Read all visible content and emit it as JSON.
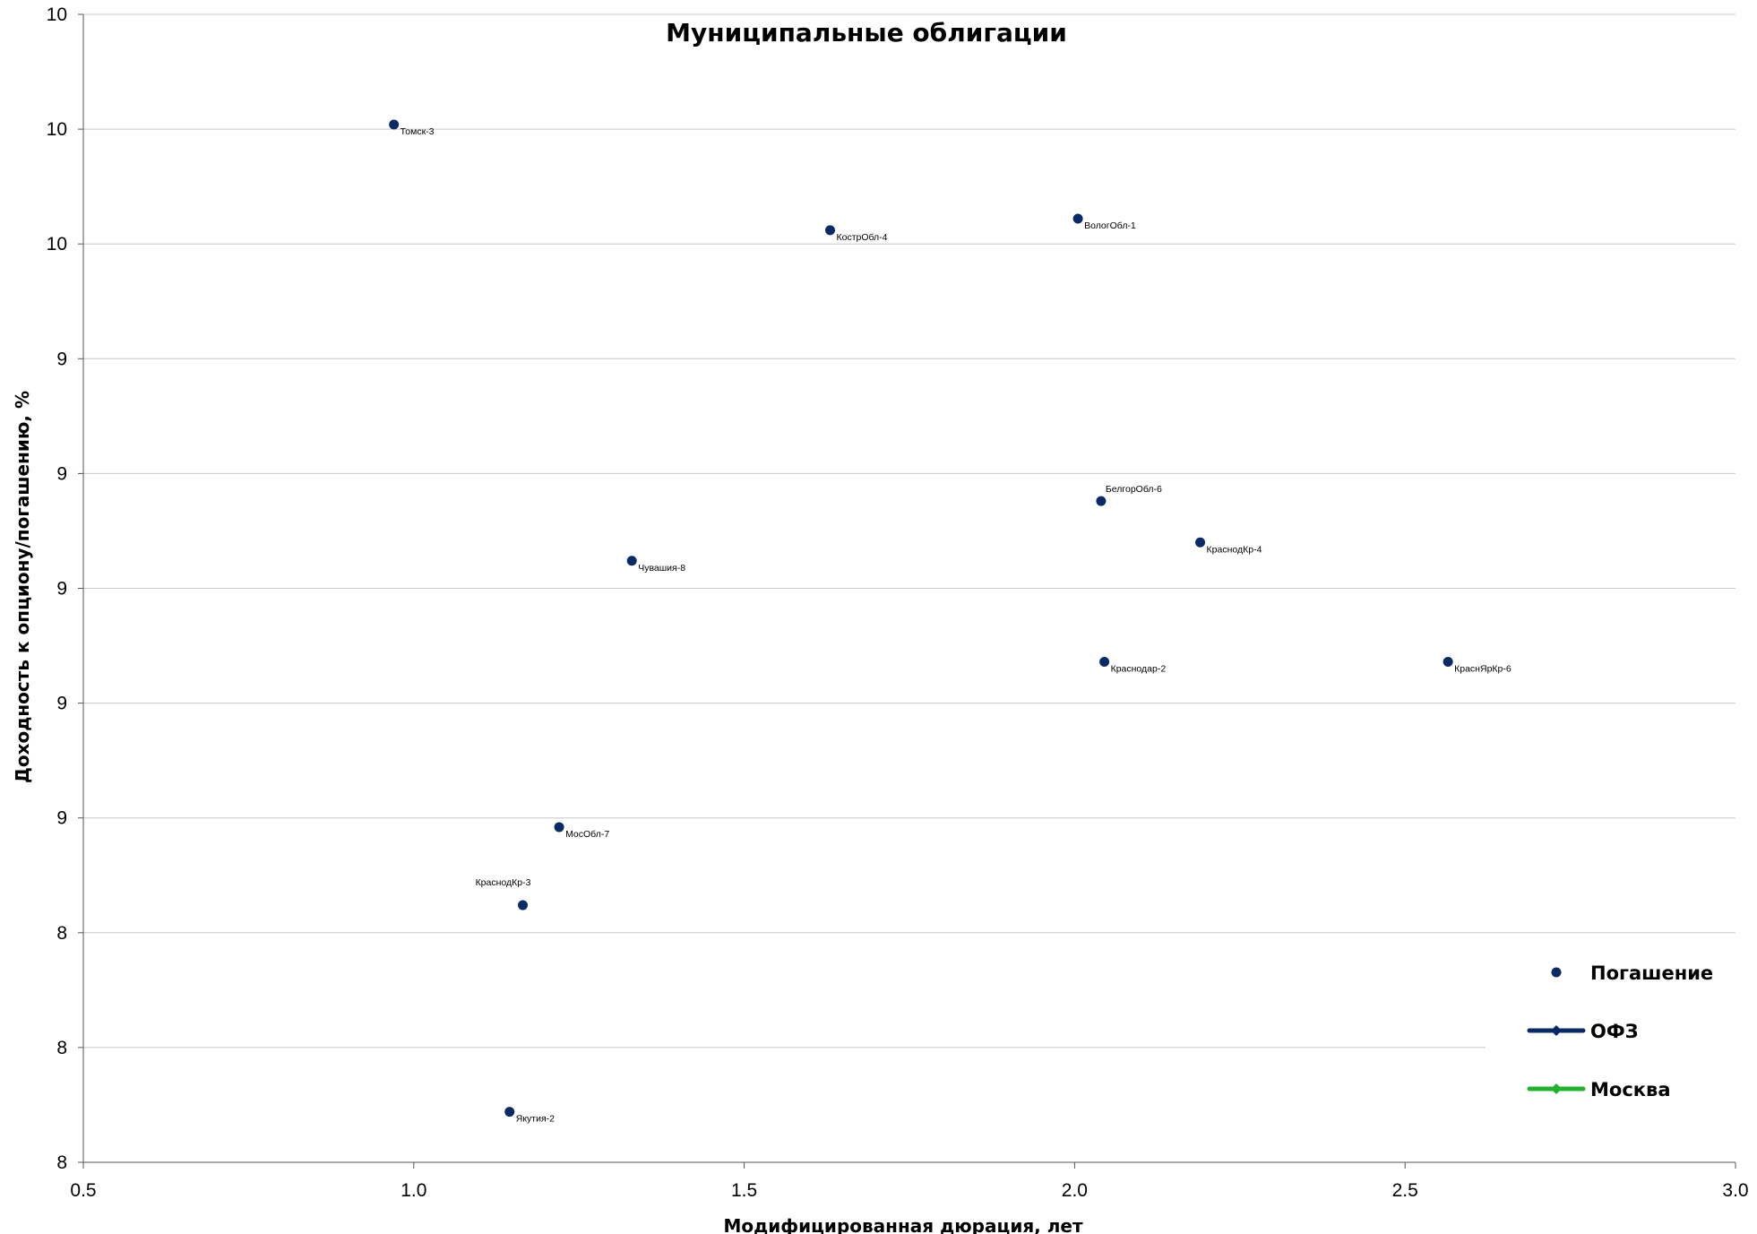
{
  "chart_data": {
    "type": "scatter",
    "title": "Муниципальные облигации",
    "xlabel": "Модифицированная дюрация, лет",
    "ylabel": "Доходность к опциону/погашению, %",
    "xlim": [
      0.5,
      3.0
    ],
    "x_ticks": [
      "0.5",
      "1.0",
      "1.5",
      "2.0",
      "2.5",
      "3.0"
    ],
    "ylim": [
      7.9,
      10.4
    ],
    "y_ticks": [
      {
        "value": 7.9,
        "label": "8"
      },
      {
        "value": 8.15,
        "label": "8"
      },
      {
        "value": 8.4,
        "label": "8"
      },
      {
        "value": 8.65,
        "label": "9"
      },
      {
        "value": 8.9,
        "label": "9"
      },
      {
        "value": 9.15,
        "label": "9"
      },
      {
        "value": 9.4,
        "label": "9"
      },
      {
        "value": 9.65,
        "label": "9"
      },
      {
        "value": 9.9,
        "label": "10"
      },
      {
        "value": 10.15,
        "label": "10"
      },
      {
        "value": 10.4,
        "label": "10"
      }
    ],
    "grid": true,
    "legend_position": "right",
    "series": [
      {
        "name": "Погашение",
        "color": "#0a2a66",
        "marker": "circle",
        "points": [
          {
            "label": "Томск-3",
            "x": 0.97,
            "y": 10.16
          },
          {
            "label": "КострОбл-4",
            "x": 1.63,
            "y": 9.93
          },
          {
            "label": "ВологОбл-1",
            "x": 2.005,
            "y": 9.955
          },
          {
            "label": "БелгорОбл-6",
            "x": 2.04,
            "y": 9.34
          },
          {
            "label": "КраснодКр-4",
            "x": 2.19,
            "y": 9.25
          },
          {
            "label": "Чувашия-8",
            "x": 1.33,
            "y": 9.21
          },
          {
            "label": "Краснодар-2",
            "x": 2.045,
            "y": 8.99
          },
          {
            "label": "КраснЯрКр-6",
            "x": 2.565,
            "y": 8.99
          },
          {
            "label": "МосОбл-7",
            "x": 1.22,
            "y": 8.63
          },
          {
            "label": "КраснодКр-3",
            "x": 1.165,
            "y": 8.46
          },
          {
            "label": "Якутия-2",
            "x": 1.145,
            "y": 8.01
          }
        ]
      },
      {
        "name": "ОФЗ",
        "color": "#0a2a66",
        "marker": "line",
        "points": []
      },
      {
        "name": "Москва",
        "color": "#22b02e",
        "marker": "line",
        "points": []
      }
    ]
  }
}
